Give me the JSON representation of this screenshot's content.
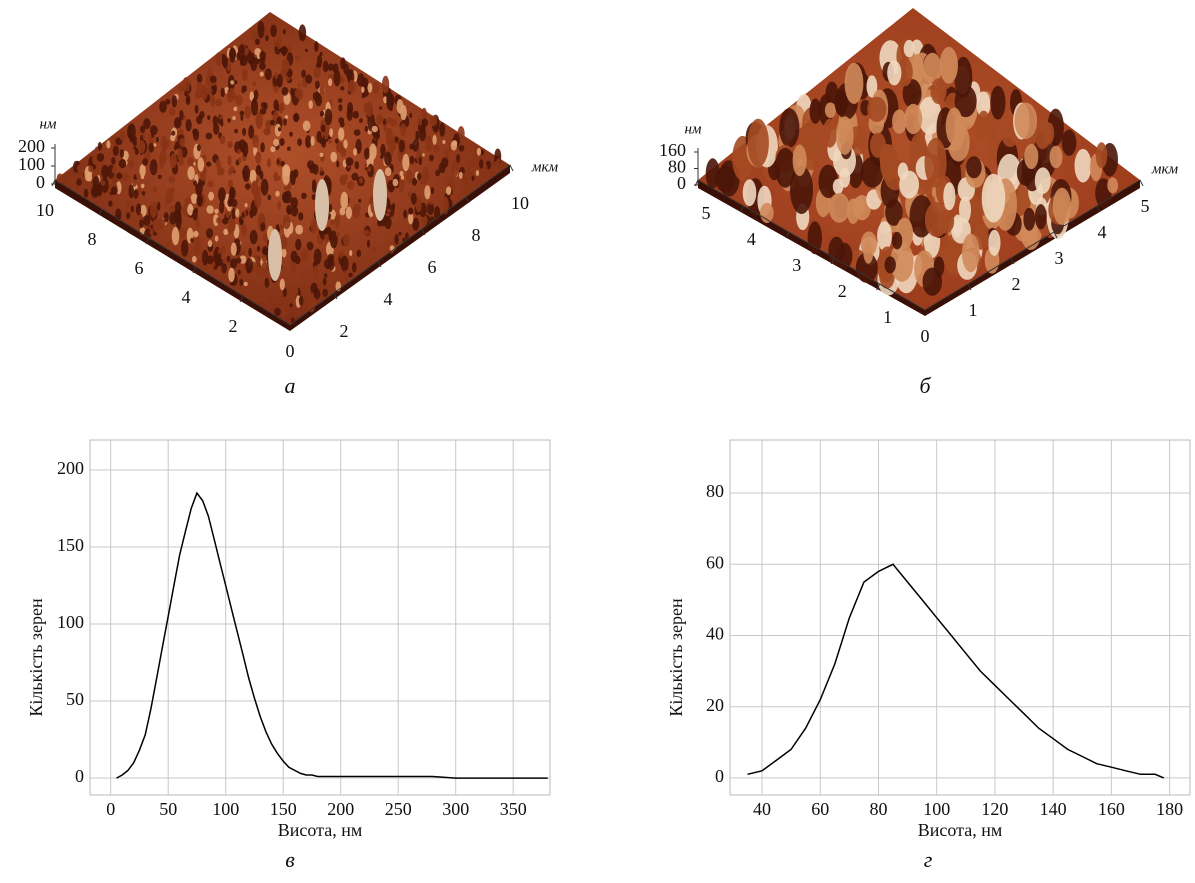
{
  "chart_data": [
    {
      "type": "surface",
      "caption": "а",
      "zlabel": "нм",
      "unit": "мкм",
      "zlim": [
        0,
        200
      ],
      "zticks": [
        0,
        100,
        200
      ],
      "origin_label": 0,
      "xlim": [
        0,
        10
      ],
      "xticks": [
        2,
        4,
        6,
        8,
        10
      ],
      "ylim": [
        0,
        10
      ],
      "yticks": [
        2,
        4,
        6,
        8,
        10
      ],
      "color": "#7a2a12"
    },
    {
      "type": "surface",
      "caption": "б",
      "zlabel": "нм",
      "unit": "мкм",
      "zlim": [
        0,
        160
      ],
      "zticks": [
        0,
        80,
        160
      ],
      "origin_label": 0,
      "xlim": [
        0,
        5
      ],
      "xticks": [
        1,
        2,
        3,
        4,
        5
      ],
      "ylim": [
        0,
        5
      ],
      "yticks": [
        1,
        2,
        3,
        4,
        5
      ],
      "color": "#9a3a1a"
    },
    {
      "type": "line",
      "caption": "в",
      "xlabel": "Висота, нм",
      "ylabel": "Кількість зерен",
      "grid": true,
      "xlim": [
        -18,
        382
      ],
      "xticks": [
        0,
        50,
        100,
        150,
        200,
        250,
        300,
        350
      ],
      "ylim": [
        -11,
        219.5
      ],
      "yticks": [
        0,
        50,
        100,
        150,
        200
      ],
      "x": [
        5,
        10,
        15,
        20,
        25,
        30,
        35,
        40,
        45,
        50,
        55,
        60,
        65,
        70,
        75,
        80,
        85,
        90,
        95,
        100,
        105,
        110,
        115,
        120,
        125,
        130,
        135,
        140,
        145,
        150,
        155,
        160,
        165,
        170,
        175,
        180,
        185,
        190,
        200,
        220,
        240,
        260,
        280,
        300,
        320,
        340,
        360,
        380
      ],
      "series": [
        {
          "color": "#000000",
          "values": [
            0,
            2,
            5,
            10,
            18,
            28,
            45,
            65,
            85,
            105,
            125,
            145,
            160,
            175,
            185,
            180,
            170,
            155,
            140,
            125,
            110,
            95,
            80,
            65,
            52,
            40,
            30,
            22,
            16,
            11,
            7,
            5,
            3,
            2,
            2,
            1,
            1,
            1,
            1,
            1,
            1,
            1,
            1,
            0,
            0,
            0,
            0,
            0
          ]
        }
      ]
    },
    {
      "type": "line",
      "caption": "г",
      "xlabel": "Висота, нм",
      "ylabel": "Кількість зерен",
      "grid": true,
      "xlim": [
        29,
        187
      ],
      "xticks": [
        40,
        60,
        80,
        100,
        120,
        140,
        160,
        180
      ],
      "ylim": [
        -4.8,
        94.9
      ],
      "yticks": [
        0,
        20,
        40,
        60,
        80
      ],
      "x": [
        35,
        40,
        45,
        50,
        55,
        60,
        65,
        70,
        75,
        80,
        85,
        90,
        95,
        100,
        105,
        110,
        115,
        120,
        125,
        130,
        135,
        140,
        145,
        150,
        155,
        160,
        165,
        170,
        175,
        178
      ],
      "series": [
        {
          "color": "#000000",
          "values": [
            1,
            2,
            5,
            8,
            14,
            22,
            32,
            45,
            55,
            58,
            60,
            55,
            50,
            45,
            40,
            35,
            30,
            26,
            22,
            18,
            14,
            11,
            8,
            6,
            4,
            3,
            2,
            1,
            1,
            0
          ]
        }
      ]
    }
  ]
}
